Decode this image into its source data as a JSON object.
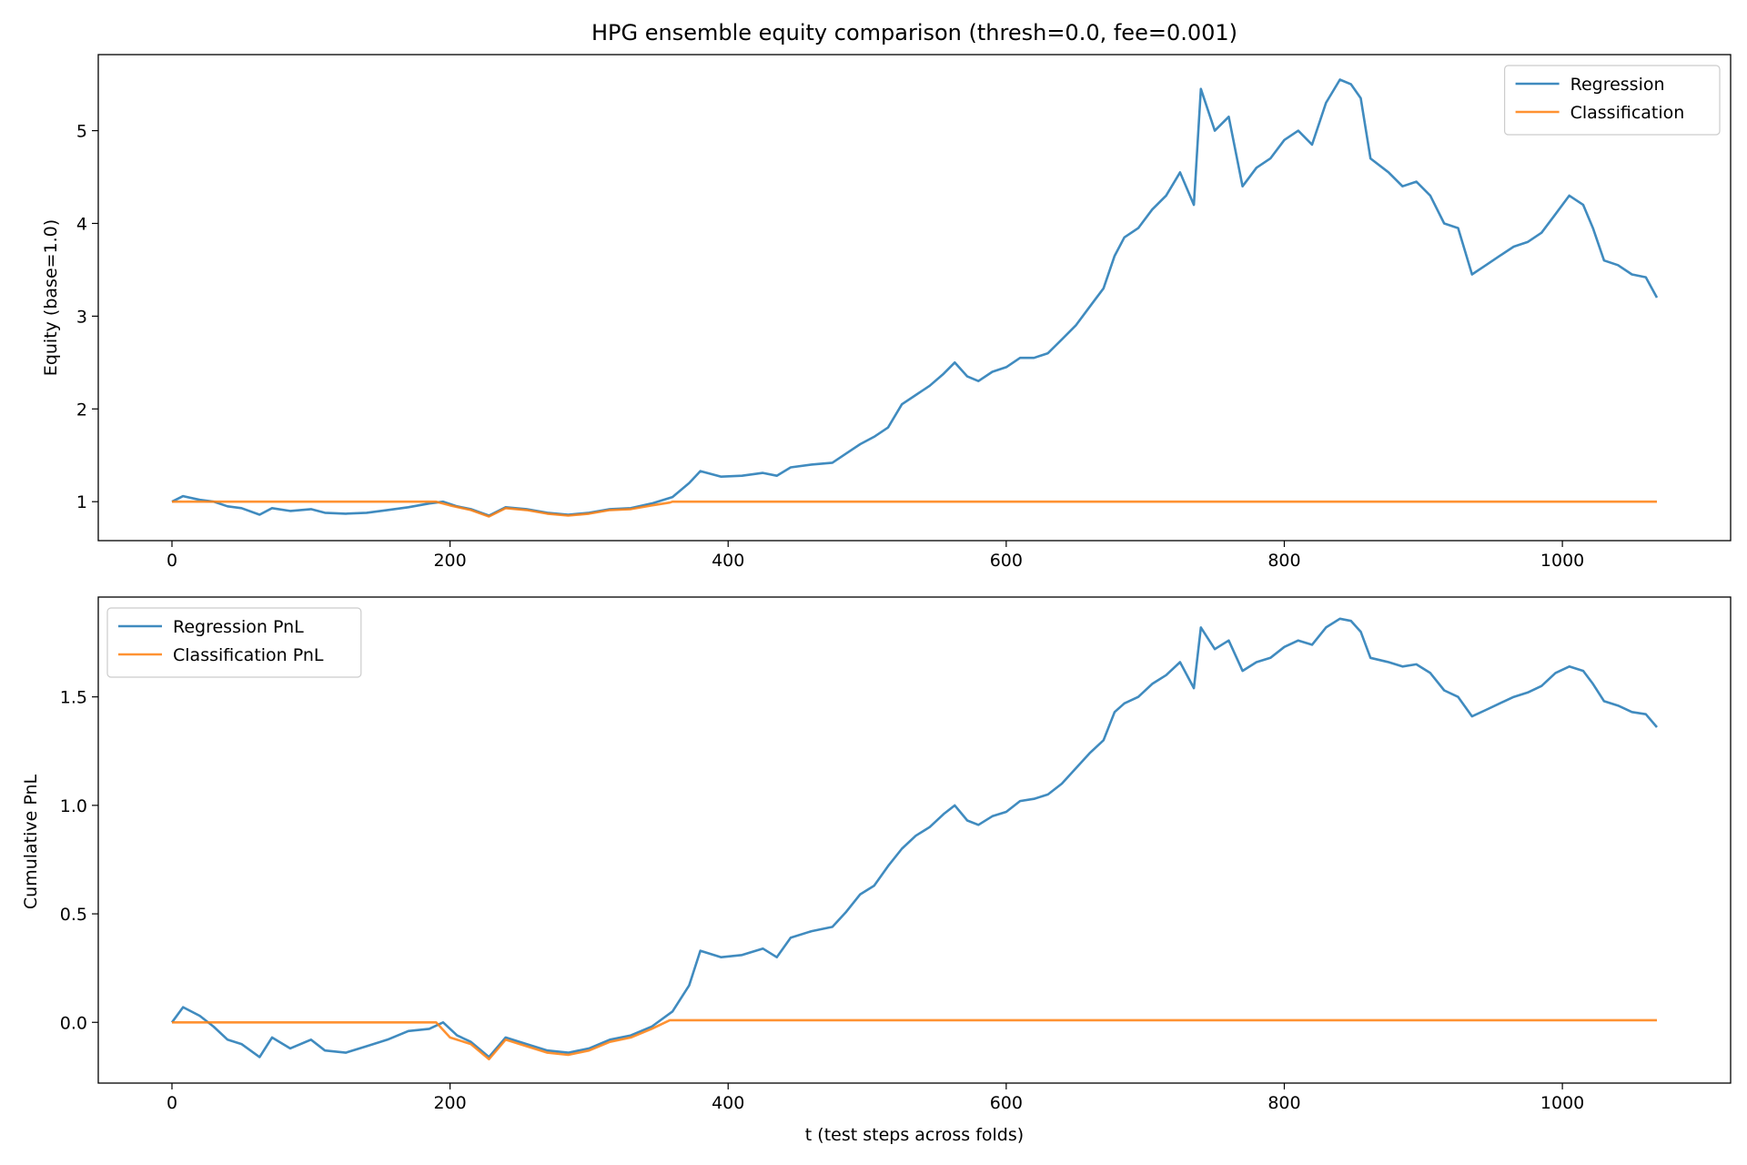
{
  "chart_data": [
    {
      "type": "line",
      "title": "HPG ensemble equity comparison (thresh=0.0, fee=0.001)",
      "xlabel": "",
      "ylabel": "Equity (base=1.0)",
      "xlim": [
        -53,
        1121
      ],
      "ylim": [
        0.58,
        5.82
      ],
      "xticks": [
        0,
        200,
        400,
        600,
        800,
        1000
      ],
      "xtick_labels": [
        "0",
        "200",
        "400",
        "600",
        "800",
        "1000"
      ],
      "yticks": [
        1,
        2,
        3,
        4,
        5
      ],
      "ytick_labels": [
        "1",
        "2",
        "3",
        "4",
        "5"
      ],
      "grid": false,
      "legend_position": "top-right",
      "series": [
        {
          "name": "Regression",
          "color": "#1f77b4",
          "points": [
            [
              0,
              1.0
            ],
            [
              8,
              1.06
            ],
            [
              20,
              1.02
            ],
            [
              30,
              1.0
            ],
            [
              40,
              0.95
            ],
            [
              50,
              0.93
            ],
            [
              63,
              0.86
            ],
            [
              72,
              0.93
            ],
            [
              85,
              0.9
            ],
            [
              100,
              0.92
            ],
            [
              110,
              0.88
            ],
            [
              125,
              0.87
            ],
            [
              140,
              0.88
            ],
            [
              155,
              0.91
            ],
            [
              170,
              0.94
            ],
            [
              185,
              0.98
            ],
            [
              195,
              1.0
            ],
            [
              205,
              0.95
            ],
            [
              215,
              0.92
            ],
            [
              228,
              0.85
            ],
            [
              240,
              0.94
            ],
            [
              255,
              0.92
            ],
            [
              270,
              0.88
            ],
            [
              285,
              0.86
            ],
            [
              300,
              0.88
            ],
            [
              315,
              0.92
            ],
            [
              330,
              0.93
            ],
            [
              345,
              0.98
            ],
            [
              360,
              1.05
            ],
            [
              372,
              1.2
            ],
            [
              380,
              1.33
            ],
            [
              395,
              1.27
            ],
            [
              410,
              1.28
            ],
            [
              425,
              1.31
            ],
            [
              435,
              1.28
            ],
            [
              445,
              1.37
            ],
            [
              460,
              1.4
            ],
            [
              475,
              1.42
            ],
            [
              485,
              1.52
            ],
            [
              495,
              1.62
            ],
            [
              505,
              1.7
            ],
            [
              515,
              1.8
            ],
            [
              525,
              2.05
            ],
            [
              535,
              2.15
            ],
            [
              545,
              2.25
            ],
            [
              555,
              2.38
            ],
            [
              563,
              2.5
            ],
            [
              572,
              2.35
            ],
            [
              580,
              2.3
            ],
            [
              590,
              2.4
            ],
            [
              600,
              2.45
            ],
            [
              610,
              2.55
            ],
            [
              620,
              2.55
            ],
            [
              630,
              2.6
            ],
            [
              640,
              2.75
            ],
            [
              650,
              2.9
            ],
            [
              660,
              3.1
            ],
            [
              670,
              3.3
            ],
            [
              678,
              3.65
            ],
            [
              685,
              3.85
            ],
            [
              695,
              3.95
            ],
            [
              705,
              4.15
            ],
            [
              715,
              4.3
            ],
            [
              725,
              4.55
            ],
            [
              735,
              4.2
            ],
            [
              740,
              5.45
            ],
            [
              750,
              5.0
            ],
            [
              760,
              5.15
            ],
            [
              770,
              4.4
            ],
            [
              780,
              4.6
            ],
            [
              790,
              4.7
            ],
            [
              800,
              4.9
            ],
            [
              810,
              5.0
            ],
            [
              820,
              4.85
            ],
            [
              830,
              5.3
            ],
            [
              840,
              5.55
            ],
            [
              848,
              5.5
            ],
            [
              855,
              5.35
            ],
            [
              862,
              4.7
            ],
            [
              875,
              4.55
            ],
            [
              885,
              4.4
            ],
            [
              895,
              4.45
            ],
            [
              905,
              4.3
            ],
            [
              915,
              4.0
            ],
            [
              925,
              3.95
            ],
            [
              935,
              3.45
            ],
            [
              945,
              3.55
            ],
            [
              955,
              3.65
            ],
            [
              965,
              3.75
            ],
            [
              975,
              3.8
            ],
            [
              985,
              3.9
            ],
            [
              995,
              4.1
            ],
            [
              1005,
              4.3
            ],
            [
              1015,
              4.2
            ],
            [
              1022,
              3.95
            ],
            [
              1030,
              3.6
            ],
            [
              1040,
              3.55
            ],
            [
              1050,
              3.45
            ],
            [
              1060,
              3.42
            ],
            [
              1068,
              3.2
            ]
          ]
        },
        {
          "name": "Classification",
          "color": "#ff7f0e",
          "points": [
            [
              0,
              1.0
            ],
            [
              50,
              1.0
            ],
            [
              100,
              1.0
            ],
            [
              150,
              1.0
            ],
            [
              190,
              1.0
            ],
            [
              200,
              0.96
            ],
            [
              215,
              0.91
            ],
            [
              228,
              0.84
            ],
            [
              240,
              0.93
            ],
            [
              255,
              0.91
            ],
            [
              270,
              0.87
            ],
            [
              285,
              0.85
            ],
            [
              300,
              0.87
            ],
            [
              315,
              0.91
            ],
            [
              330,
              0.92
            ],
            [
              345,
              0.96
            ],
            [
              358,
              0.99
            ],
            [
              360,
              1.0
            ],
            [
              500,
              1.0
            ],
            [
              700,
              1.0
            ],
            [
              900,
              1.0
            ],
            [
              1068,
              1.0
            ]
          ]
        }
      ]
    },
    {
      "type": "line",
      "title": "",
      "xlabel": "t (test steps across folds)",
      "ylabel": "Cumulative PnL",
      "xlim": [
        -53,
        1121
      ],
      "ylim": [
        -0.28,
        1.96
      ],
      "xticks": [
        0,
        200,
        400,
        600,
        800,
        1000
      ],
      "xtick_labels": [
        "0",
        "200",
        "400",
        "600",
        "800",
        "1000"
      ],
      "yticks": [
        0.0,
        0.5,
        1.0,
        1.5
      ],
      "ytick_labels": [
        "0.0",
        "0.5",
        "1.0",
        "1.5"
      ],
      "grid": false,
      "legend_position": "top-left",
      "series": [
        {
          "name": "Regression PnL",
          "color": "#1f77b4",
          "points": [
            [
              0,
              0.0
            ],
            [
              8,
              0.07
            ],
            [
              20,
              0.03
            ],
            [
              30,
              -0.02
            ],
            [
              40,
              -0.08
            ],
            [
              50,
              -0.1
            ],
            [
              63,
              -0.16
            ],
            [
              72,
              -0.07
            ],
            [
              85,
              -0.12
            ],
            [
              100,
              -0.08
            ],
            [
              110,
              -0.13
            ],
            [
              125,
              -0.14
            ],
            [
              140,
              -0.11
            ],
            [
              155,
              -0.08
            ],
            [
              170,
              -0.04
            ],
            [
              185,
              -0.03
            ],
            [
              195,
              0.0
            ],
            [
              205,
              -0.06
            ],
            [
              215,
              -0.09
            ],
            [
              228,
              -0.16
            ],
            [
              240,
              -0.07
            ],
            [
              255,
              -0.1
            ],
            [
              270,
              -0.13
            ],
            [
              285,
              -0.14
            ],
            [
              300,
              -0.12
            ],
            [
              315,
              -0.08
            ],
            [
              330,
              -0.06
            ],
            [
              345,
              -0.02
            ],
            [
              360,
              0.05
            ],
            [
              372,
              0.17
            ],
            [
              380,
              0.33
            ],
            [
              395,
              0.3
            ],
            [
              410,
              0.31
            ],
            [
              425,
              0.34
            ],
            [
              435,
              0.3
            ],
            [
              445,
              0.39
            ],
            [
              460,
              0.42
            ],
            [
              475,
              0.44
            ],
            [
              485,
              0.51
            ],
            [
              495,
              0.59
            ],
            [
              505,
              0.63
            ],
            [
              515,
              0.72
            ],
            [
              525,
              0.8
            ],
            [
              535,
              0.86
            ],
            [
              545,
              0.9
            ],
            [
              555,
              0.96
            ],
            [
              563,
              1.0
            ],
            [
              572,
              0.93
            ],
            [
              580,
              0.91
            ],
            [
              590,
              0.95
            ],
            [
              600,
              0.97
            ],
            [
              610,
              1.02
            ],
            [
              620,
              1.03
            ],
            [
              630,
              1.05
            ],
            [
              640,
              1.1
            ],
            [
              650,
              1.17
            ],
            [
              660,
              1.24
            ],
            [
              670,
              1.3
            ],
            [
              678,
              1.43
            ],
            [
              685,
              1.47
            ],
            [
              695,
              1.5
            ],
            [
              705,
              1.56
            ],
            [
              715,
              1.6
            ],
            [
              725,
              1.66
            ],
            [
              735,
              1.54
            ],
            [
              740,
              1.82
            ],
            [
              750,
              1.72
            ],
            [
              760,
              1.76
            ],
            [
              770,
              1.62
            ],
            [
              780,
              1.66
            ],
            [
              790,
              1.68
            ],
            [
              800,
              1.73
            ],
            [
              810,
              1.76
            ],
            [
              820,
              1.74
            ],
            [
              830,
              1.82
            ],
            [
              840,
              1.86
            ],
            [
              848,
              1.85
            ],
            [
              855,
              1.8
            ],
            [
              862,
              1.68
            ],
            [
              875,
              1.66
            ],
            [
              885,
              1.64
            ],
            [
              895,
              1.65
            ],
            [
              905,
              1.61
            ],
            [
              915,
              1.53
            ],
            [
              925,
              1.5
            ],
            [
              935,
              1.41
            ],
            [
              945,
              1.44
            ],
            [
              955,
              1.47
            ],
            [
              965,
              1.5
            ],
            [
              975,
              1.52
            ],
            [
              985,
              1.55
            ],
            [
              995,
              1.61
            ],
            [
              1005,
              1.64
            ],
            [
              1015,
              1.62
            ],
            [
              1022,
              1.56
            ],
            [
              1030,
              1.48
            ],
            [
              1040,
              1.46
            ],
            [
              1050,
              1.43
            ],
            [
              1060,
              1.42
            ],
            [
              1068,
              1.36
            ]
          ]
        },
        {
          "name": "Classification PnL",
          "color": "#ff7f0e",
          "points": [
            [
              0,
              0.0
            ],
            [
              50,
              0.0
            ],
            [
              100,
              0.0
            ],
            [
              150,
              0.0
            ],
            [
              190,
              0.0
            ],
            [
              200,
              -0.07
            ],
            [
              215,
              -0.1
            ],
            [
              228,
              -0.17
            ],
            [
              240,
              -0.08
            ],
            [
              255,
              -0.11
            ],
            [
              270,
              -0.14
            ],
            [
              285,
              -0.15
            ],
            [
              300,
              -0.13
            ],
            [
              315,
              -0.09
            ],
            [
              330,
              -0.07
            ],
            [
              345,
              -0.03
            ],
            [
              358,
              0.01
            ],
            [
              360,
              0.01
            ],
            [
              500,
              0.01
            ],
            [
              700,
              0.01
            ],
            [
              900,
              0.01
            ],
            [
              1068,
              0.01
            ]
          ]
        }
      ]
    }
  ]
}
